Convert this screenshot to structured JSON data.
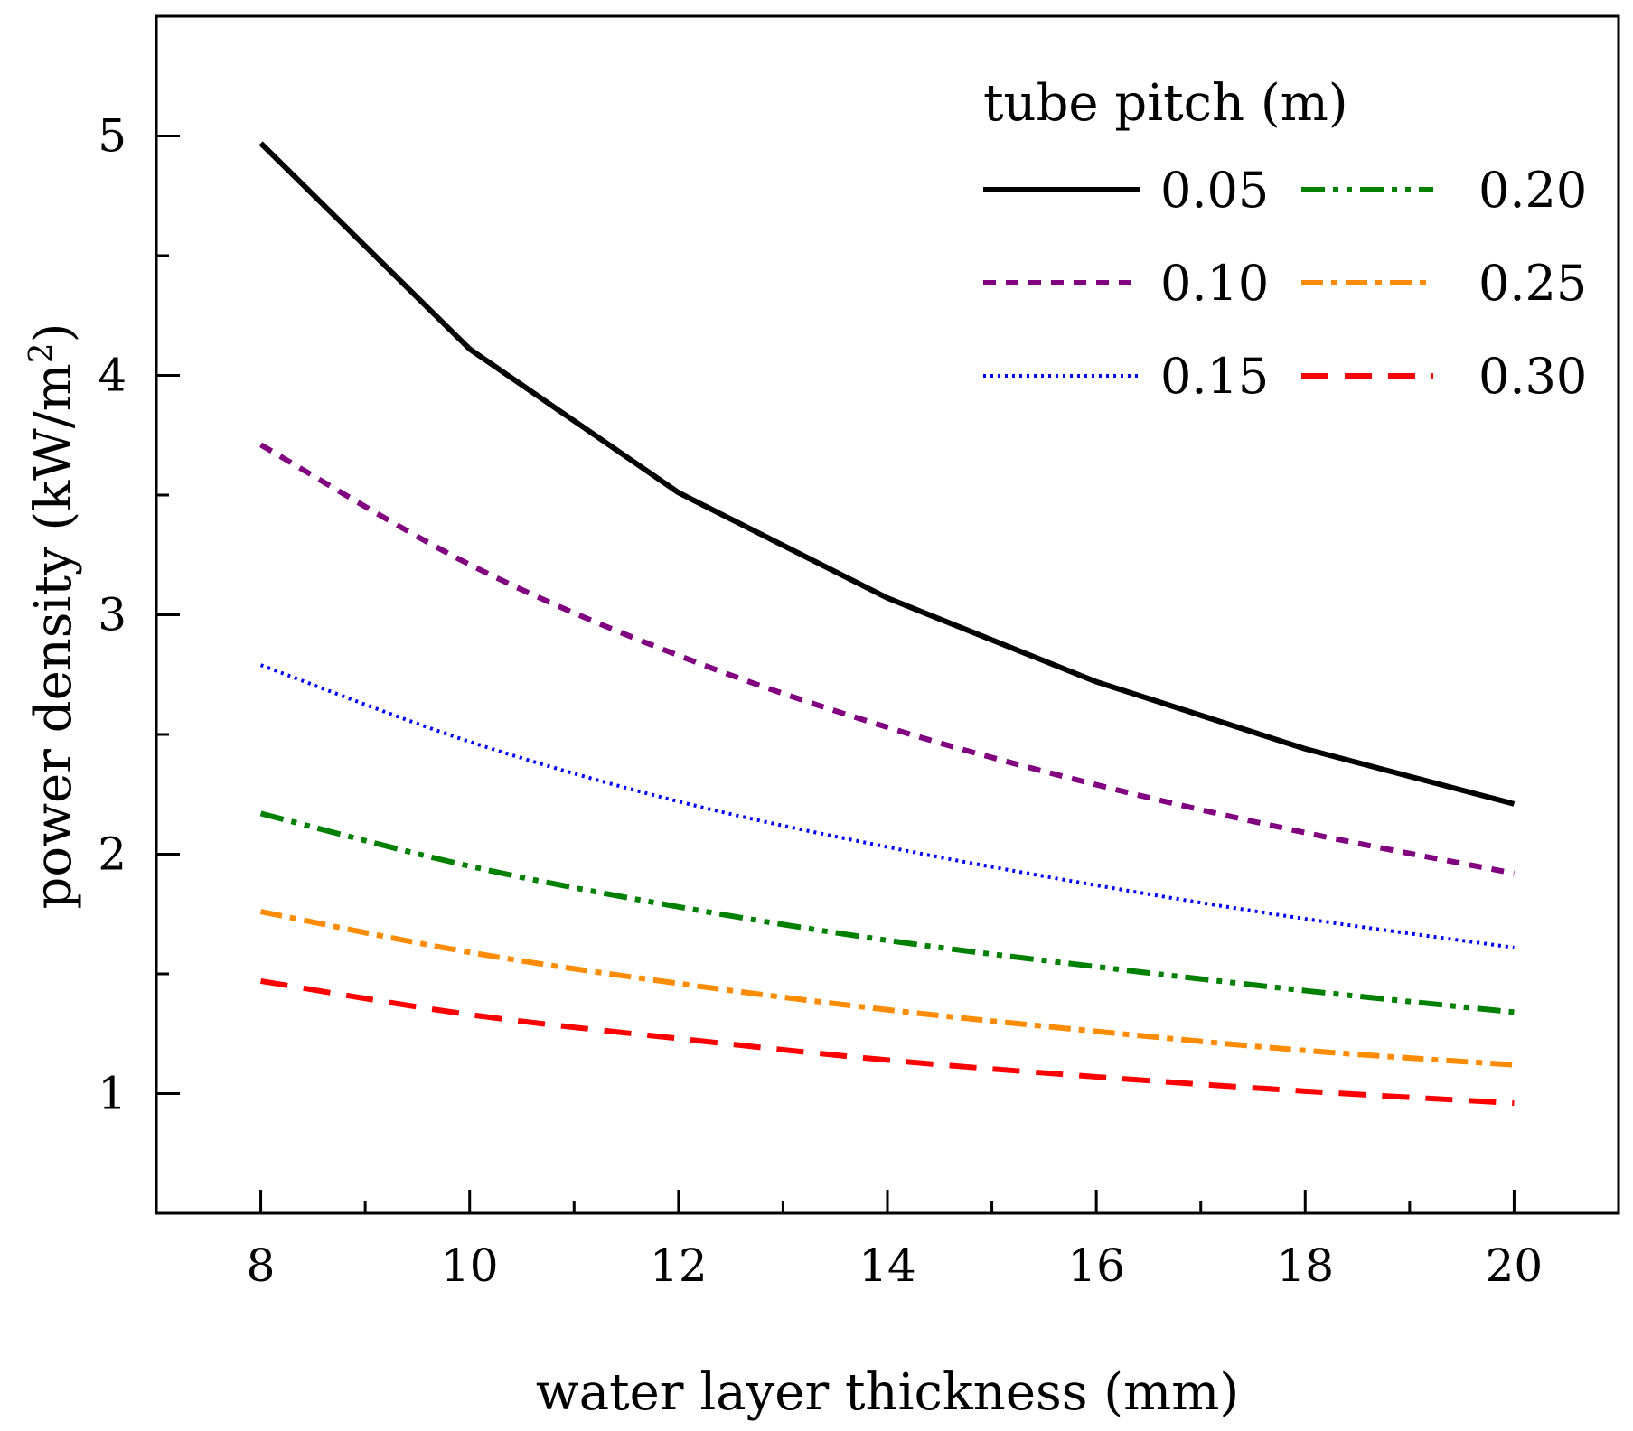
{
  "chart_data": {
    "type": "line",
    "title": "",
    "xlabel": "water layer thickness (mm)",
    "ylabel_main": "power density (kW/m",
    "ylabel_sup": "2",
    "ylabel_close": ")",
    "xlim": [
      7,
      21
    ],
    "ylim": [
      0.5,
      5.5
    ],
    "xticks": [
      8,
      10,
      12,
      14,
      16,
      18,
      20
    ],
    "yticks": [
      1,
      2,
      3,
      4,
      5
    ],
    "x": [
      8,
      10,
      12,
      14,
      16,
      18,
      20
    ],
    "legend_title": "tube pitch (m)",
    "legend_position": "top-right",
    "series": [
      {
        "name": "0.05",
        "color": "#000000",
        "style": "solid",
        "values": [
          4.97,
          4.11,
          3.51,
          3.07,
          2.72,
          2.44,
          2.21
        ]
      },
      {
        "name": "0.10",
        "color": "#800080",
        "style": "dash-short",
        "values": [
          3.71,
          3.21,
          2.83,
          2.53,
          2.29,
          2.09,
          1.92
        ]
      },
      {
        "name": "0.15",
        "color": "#0000ff",
        "style": "dotted",
        "values": [
          2.79,
          2.47,
          2.22,
          2.03,
          1.87,
          1.73,
          1.61
        ]
      },
      {
        "name": "0.20",
        "color": "#008000",
        "style": "dash-dot-dot",
        "values": [
          2.17,
          1.95,
          1.78,
          1.64,
          1.53,
          1.43,
          1.34
        ]
      },
      {
        "name": "0.25",
        "color": "#ff8c00",
        "style": "dash-dot",
        "values": [
          1.76,
          1.59,
          1.46,
          1.35,
          1.26,
          1.18,
          1.12
        ]
      },
      {
        "name": "0.30",
        "color": "#ff0000",
        "style": "dash-long",
        "values": [
          1.47,
          1.33,
          1.23,
          1.14,
          1.07,
          1.01,
          0.96
        ]
      }
    ]
  }
}
